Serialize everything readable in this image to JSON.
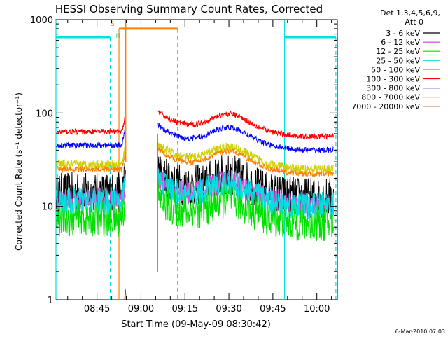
{
  "chart_data": {
    "type": "line",
    "title": "HESSI Observing Summary Count Rates, Corrected",
    "xlabel": "Start Time (09-May-09 08:30:42)",
    "ylabel": "Corrected Count Rate (s⁻¹ detector⁻¹)",
    "y_scale": "log",
    "ylim": [
      1,
      1000
    ],
    "xlim_minutes_since_0830": [
      0.7,
      41.0
    ],
    "y_ticks": [
      {
        "value": 1,
        "label": "1"
      },
      {
        "value": 10,
        "label": "10"
      },
      {
        "value": 100,
        "label": "100"
      },
      {
        "value": 1000,
        "label": "1000"
      }
    ],
    "x_ticks": [
      {
        "minute": 15,
        "label": "08:45"
      },
      {
        "minute": 30,
        "label": "09:00"
      },
      {
        "minute": 45,
        "label": "09:15"
      },
      {
        "minute": 60,
        "label": "09:30"
      },
      {
        "minute": 75,
        "label": "09:45"
      },
      {
        "minute": 90,
        "label": "10:00"
      }
    ],
    "x_axis_span_minutes": [
      1.0,
      97.0
    ],
    "legend": {
      "placement": "right",
      "header": [
        "Det 1,3,4,5,6,9,",
        "Att 0"
      ]
    },
    "gap": {
      "start_minute": 25.0,
      "end_minute": 35.5
    },
    "series": [
      {
        "name": "3 - 6 keV",
        "color": "#000000",
        "base": 14,
        "noise": 0.22
      },
      {
        "name": "6 - 12 keV",
        "color": "#e040e0",
        "base": 12,
        "noise": 0.12
      },
      {
        "name": "12 - 25 keV",
        "color": "#00e000",
        "base": 7.5,
        "noise": 0.2
      },
      {
        "name": "25 - 50 keV",
        "color": "#00e0e0",
        "base": 11.5,
        "noise": 0.15
      },
      {
        "name": "50 - 100 keV",
        "color": "#d0d000",
        "base": 28,
        "noise": 0.05
      },
      {
        "name": "100 - 300 keV",
        "color": "#ff0000",
        "base": 63,
        "noise": 0.03
      },
      {
        "name": "300 - 800 keV",
        "color": "#0000ff",
        "base": 45,
        "noise": 0.03
      },
      {
        "name": "800 - 7000 keV",
        "color": "#ff8000",
        "base": 25,
        "noise": 0.03
      },
      {
        "name": "7000 - 20000 keV",
        "color": "#a05000",
        "base": 1,
        "noise": 0.0
      }
    ],
    "flags": {
      "saa": {
        "label": "S",
        "color": "#ff8000",
        "start_minute": 22.5,
        "end_minute": 42.5,
        "level": 800
      },
      "night": {
        "label": "N",
        "color": "#00e0e0",
        "segments": [
          {
            "start_minute": 1.0,
            "end_minute": 19.5
          },
          {
            "start_minute": 79.0,
            "end_minute": 96.5
          }
        ],
        "level": 650
      }
    },
    "footer_timestamp": "6-Mar-2010 07:03"
  }
}
